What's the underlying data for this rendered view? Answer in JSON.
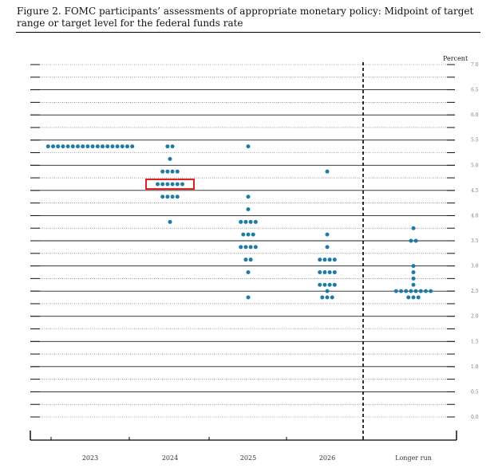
{
  "figure": {
    "title": "Figure 2.  FOMC participants’ assessments of appropriate monetary policy: Midpoint of target range or target level for the federal funds rate"
  },
  "chart_data": {
    "type": "scatter",
    "subtype": "dot plot",
    "ylabel": "Percent",
    "ylim": [
      0.0,
      7.0
    ],
    "y_ticks": [
      "0.0",
      "0.5",
      "1.0",
      "1.5",
      "2.0",
      "2.5",
      "3.0",
      "3.5",
      "4.0",
      "4.5",
      "5.0",
      "5.5",
      "6.0",
      "6.5",
      "7.0"
    ],
    "categories": [
      "2023",
      "2024",
      "2025",
      "2026",
      "Longer run"
    ],
    "dot_color": "#1f7ba5",
    "highlight": {
      "category": "2024",
      "value": 4.625,
      "color": "#e02020"
    },
    "dots": [
      {
        "category": "2023",
        "y": 5.375,
        "count": 18
      },
      {
        "category": "2024",
        "y": 5.375,
        "count": 2
      },
      {
        "category": "2024",
        "y": 5.125,
        "count": 1
      },
      {
        "category": "2024",
        "y": 4.875,
        "count": 4
      },
      {
        "category": "2024",
        "y": 4.625,
        "count": 6
      },
      {
        "category": "2024",
        "y": 4.375,
        "count": 4
      },
      {
        "category": "2024",
        "y": 3.875,
        "count": 1
      },
      {
        "category": "2025",
        "y": 5.375,
        "count": 1
      },
      {
        "category": "2025",
        "y": 4.375,
        "count": 1
      },
      {
        "category": "2025",
        "y": 4.125,
        "count": 1
      },
      {
        "category": "2025",
        "y": 3.875,
        "count": 4
      },
      {
        "category": "2025",
        "y": 3.625,
        "count": 3
      },
      {
        "category": "2025",
        "y": 3.375,
        "count": 4
      },
      {
        "category": "2025",
        "y": 3.125,
        "count": 2
      },
      {
        "category": "2025",
        "y": 2.875,
        "count": 1
      },
      {
        "category": "2025",
        "y": 2.375,
        "count": 1
      },
      {
        "category": "2026",
        "y": 4.875,
        "count": 1
      },
      {
        "category": "2026",
        "y": 3.625,
        "count": 1
      },
      {
        "category": "2026",
        "y": 3.375,
        "count": 1
      },
      {
        "category": "2026",
        "y": 3.125,
        "count": 4
      },
      {
        "category": "2026",
        "y": 2.875,
        "count": 4
      },
      {
        "category": "2026",
        "y": 2.625,
        "count": 4
      },
      {
        "category": "2026",
        "y": 2.5,
        "count": 1
      },
      {
        "category": "2026",
        "y": 2.375,
        "count": 3
      },
      {
        "category": "Longer run",
        "y": 3.75,
        "count": 1
      },
      {
        "category": "Longer run",
        "y": 3.5,
        "count": 2
      },
      {
        "category": "Longer run",
        "y": 3.0,
        "count": 1
      },
      {
        "category": "Longer run",
        "y": 2.875,
        "count": 1
      },
      {
        "category": "Longer run",
        "y": 2.75,
        "count": 1
      },
      {
        "category": "Longer run",
        "y": 2.625,
        "count": 1
      },
      {
        "category": "Longer run",
        "y": 2.5,
        "count": 8
      },
      {
        "category": "Longer run",
        "y": 2.375,
        "count": 3
      }
    ]
  }
}
